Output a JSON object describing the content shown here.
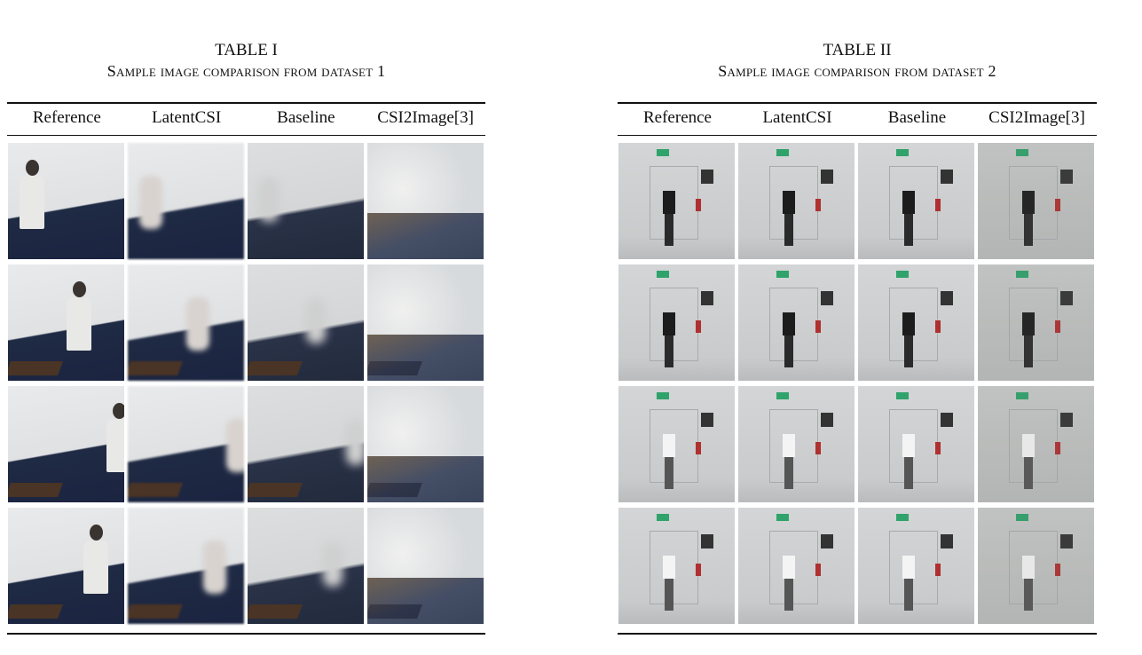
{
  "tables": [
    {
      "label": "TABLE I",
      "caption": "Sample image comparison from dataset 1",
      "columns": [
        "Reference",
        "LatentCSI",
        "Baseline",
        "CSI2Image[3]"
      ],
      "rows": 4,
      "dataset": "d1"
    },
    {
      "label": "TABLE II",
      "caption": "Sample image comparison from dataset 2",
      "columns": [
        "Reference",
        "LatentCSI",
        "Baseline",
        "CSI2Image[3]"
      ],
      "rows": 4,
      "dataset": "d2"
    }
  ]
}
